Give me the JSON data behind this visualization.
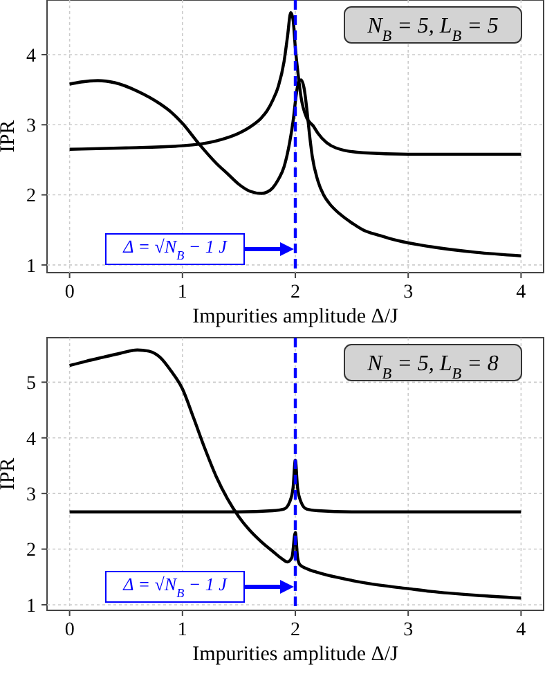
{
  "chart_data": [
    {
      "type": "line",
      "xlabel": "Impurities amplitude Δ/J",
      "ylabel": "IPR",
      "xlim": [
        -0.2,
        4.2
      ],
      "ylim": [
        0.89,
        4.78
      ],
      "xticks": [
        0,
        1,
        2,
        3,
        4
      ],
      "yticks": [
        1,
        2,
        3,
        4
      ],
      "grid": true,
      "line_style": "solid",
      "marker": "none",
      "annotations": [
        "N$_{B}$ = 5, L$_{B}$ = 5",
        "Δ = √N$_{B}$ − 1 J"
      ],
      "ref_lines": [
        {
          "axis": "x",
          "value": 2,
          "color": "#0000ff",
          "line_style": "dashed"
        }
      ],
      "series": [
        {
          "color": "#000000",
          "x": [
            0,
            0.5,
            1,
            1.3,
            1.5,
            1.6,
            1.7,
            1.75,
            1.8,
            1.85,
            1.9,
            1.93,
            1.96,
            1.98,
            2,
            2.03,
            2.05,
            2.1,
            2.16,
            2.2,
            2.36,
            2.6,
            3,
            3.5,
            4
          ],
          "values": [
            2.65,
            2.67,
            2.7,
            2.77,
            2.88,
            2.97,
            3.1,
            3.2,
            3.35,
            3.55,
            3.9,
            4.25,
            4.6,
            4.5,
            4.1,
            3.65,
            3.4,
            3.1,
            2.98,
            2.88,
            2.67,
            2.6,
            2.58,
            2.58,
            2.58
          ]
        },
        {
          "color": "#000000",
          "x": [
            0,
            0.1,
            0.25,
            0.4,
            0.6,
            0.8,
            0.9,
            1,
            1.15,
            1.3,
            1.4,
            1.5,
            1.6,
            1.7,
            1.75,
            1.8,
            1.85,
            1.9,
            1.95,
            1.98,
            2.01,
            2.03,
            2.05,
            2.08,
            2.1,
            2.13,
            2.15,
            2.2,
            2.25,
            2.3,
            2.4,
            2.5,
            2.6,
            2.75,
            2.9,
            3.2,
            3.6,
            4
          ],
          "values": [
            3.58,
            3.61,
            3.63,
            3.6,
            3.48,
            3.3,
            3.18,
            3.02,
            2.72,
            2.45,
            2.3,
            2.15,
            2.05,
            2.02,
            2.04,
            2.1,
            2.22,
            2.4,
            2.75,
            3.05,
            3.45,
            3.62,
            3.64,
            3.5,
            3.25,
            2.8,
            2.55,
            2.2,
            2.0,
            1.88,
            1.72,
            1.6,
            1.5,
            1.42,
            1.35,
            1.26,
            1.18,
            1.13
          ]
        }
      ]
    },
    {
      "type": "line",
      "xlabel": "Impurities amplitude Δ/J",
      "ylabel": "IPR",
      "xlim": [
        -0.2,
        4.2
      ],
      "ylim": [
        0.9,
        5.8
      ],
      "xticks": [
        0,
        1,
        2,
        3,
        4
      ],
      "yticks": [
        1,
        2,
        3,
        4,
        5
      ],
      "grid": true,
      "line_style": "solid",
      "marker": "none",
      "annotations": [
        "N$_{B}$ = 5, L$_{B}$ = 8",
        "Δ = √N$_{B}$ − 1 J"
      ],
      "ref_lines": [
        {
          "axis": "x",
          "value": 2,
          "color": "#0000ff",
          "line_style": "dashed"
        }
      ],
      "series": [
        {
          "color": "#000000",
          "x": [
            0,
            0.5,
            1,
            1.5,
            1.8,
            1.9,
            1.95,
            1.98,
            2,
            2.02,
            2.05,
            2.1,
            2.2,
            2.5,
            3,
            3.5,
            4
          ],
          "values": [
            2.67,
            2.67,
            2.67,
            2.67,
            2.69,
            2.72,
            2.85,
            3.1,
            3.6,
            3.1,
            2.85,
            2.72,
            2.69,
            2.67,
            2.67,
            2.67,
            2.67
          ]
        },
        {
          "color": "#000000",
          "x": [
            0,
            0.15,
            0.3,
            0.45,
            0.6,
            0.7,
            0.8,
            0.9,
            1,
            1.1,
            1.2,
            1.3,
            1.4,
            1.5,
            1.6,
            1.7,
            1.8,
            1.88,
            1.93,
            1.97,
            2,
            2.02,
            2.04,
            2.1,
            2.2,
            2.4,
            2.6,
            2.8,
            3,
            3.2,
            3.6,
            4
          ],
          "values": [
            5.3,
            5.38,
            5.45,
            5.52,
            5.58,
            5.56,
            5.45,
            5.2,
            4.88,
            4.35,
            3.8,
            3.3,
            2.9,
            2.58,
            2.33,
            2.13,
            1.96,
            1.83,
            1.77,
            1.85,
            2.3,
            1.85,
            1.72,
            1.65,
            1.58,
            1.48,
            1.4,
            1.34,
            1.29,
            1.24,
            1.17,
            1.12
          ]
        }
      ]
    }
  ]
}
